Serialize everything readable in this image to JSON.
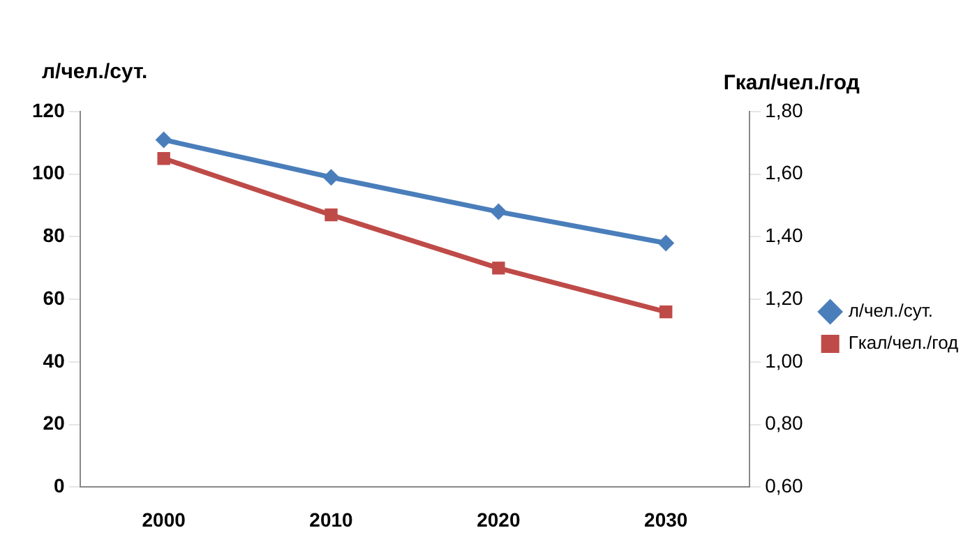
{
  "chart_data": {
    "type": "line",
    "ylabel": "л/чел./сут.",
    "y2label": "Гкал/чел./год",
    "categories": [
      "2000",
      "2010",
      "2020",
      "2030"
    ],
    "series": [
      {
        "name": "л/чел./сут.",
        "color": "#4a7ebb",
        "values": [
          111,
          99,
          88,
          78
        ],
        "marker": "diamond"
      },
      {
        "name": "Гкал/чел./год",
        "color": "#be4b48",
        "values": [
          1.65,
          1.47,
          1.3,
          1.16
        ],
        "axis": "y2",
        "marker": "square"
      }
    ],
    "ylim": [
      0,
      120
    ],
    "yticks": [
      0,
      20,
      40,
      60,
      80,
      100,
      120
    ],
    "y2lim": [
      0.6,
      1.8
    ],
    "y2ticks": [
      {
        "value": 0.6,
        "label": "0,60"
      },
      {
        "value": 0.8,
        "label": "0,80"
      },
      {
        "value": 1.0,
        "label": "1,00"
      },
      {
        "value": 1.2,
        "label": "1,20"
      },
      {
        "value": 1.4,
        "label": "1,40"
      },
      {
        "value": 1.6,
        "label": "1,60"
      },
      {
        "value": 1.8,
        "label": "1,80"
      }
    ],
    "grid": false,
    "legend": "right",
    "line_style": "solid"
  }
}
